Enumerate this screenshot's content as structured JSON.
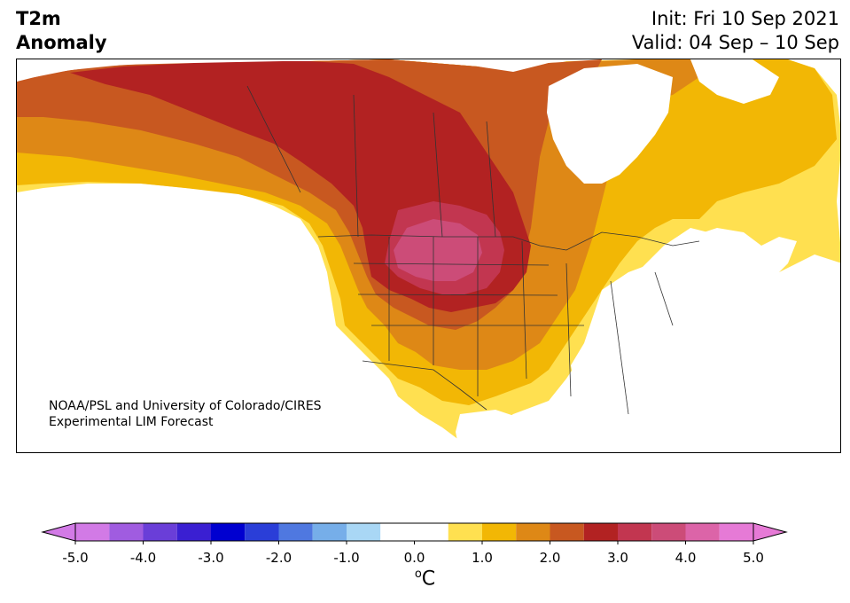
{
  "title": {
    "variable": "T2m",
    "subtitle": "Anomaly",
    "init": "Init: Fri 10 Sep 2021",
    "valid": "Valid: 04 Sep – 10 Sep"
  },
  "credit": {
    "line1": "NOAA/PSL and University of Colorado/CIRES",
    "line2": "Experimental LIM Forecast"
  },
  "colorbar": {
    "bins": [
      {
        "lo": -5.0,
        "hi": -4.5,
        "color": "#d27ae6"
      },
      {
        "lo": -4.5,
        "hi": -4.0,
        "color": "#a05ce0"
      },
      {
        "lo": -4.0,
        "hi": -3.5,
        "color": "#6a3ed8"
      },
      {
        "lo": -3.5,
        "hi": -3.0,
        "color": "#3a1fd2"
      },
      {
        "lo": -3.0,
        "hi": -2.5,
        "color": "#0000d0"
      },
      {
        "lo": -2.5,
        "hi": -2.0,
        "color": "#2a3ed8"
      },
      {
        "lo": -2.0,
        "hi": -1.5,
        "color": "#4f78e0"
      },
      {
        "lo": -1.5,
        "hi": -1.0,
        "color": "#76aee9"
      },
      {
        "lo": -1.0,
        "hi": -0.5,
        "color": "#a9d7f5"
      },
      {
        "lo": -0.5,
        "hi": 0.5,
        "color": "#ffffff"
      },
      {
        "lo": 0.5,
        "hi": 1.0,
        "color": "#ffe050"
      },
      {
        "lo": 1.0,
        "hi": 1.5,
        "color": "#f2b705"
      },
      {
        "lo": 1.5,
        "hi": 2.0,
        "color": "#de8816"
      },
      {
        "lo": 2.0,
        "hi": 2.5,
        "color": "#c85820"
      },
      {
        "lo": 2.5,
        "hi": 3.0,
        "color": "#b22222"
      },
      {
        "lo": 3.0,
        "hi": 3.5,
        "color": "#c23650"
      },
      {
        "lo": 3.5,
        "hi": 4.0,
        "color": "#cc4c78"
      },
      {
        "lo": 4.0,
        "hi": 4.5,
        "color": "#dc64a8"
      },
      {
        "lo": 4.5,
        "hi": 5.0,
        "color": "#e67ad6"
      }
    ],
    "min_extend_color": "#d27ae6",
    "max_extend_color": "#e67ad6",
    "ticks": [
      "-5.0",
      "-4.0",
      "-3.0",
      "-2.0",
      "-1.0",
      "0.0",
      "1.0",
      "2.0",
      "3.0",
      "4.0",
      "5.0"
    ],
    "tick_values": [
      -5,
      -4,
      -3,
      -2,
      -1,
      0,
      1,
      2,
      3,
      4,
      5
    ],
    "units_symbol": "o",
    "units_letter": "C"
  },
  "map": {
    "region": "North America",
    "colors": {
      "ocean": "#ffffff",
      "anom_0_5": "#ffe050",
      "anom_1_0": "#f2b705",
      "anom_1_5": "#de8816",
      "anom_2_0": "#c85820",
      "anom_2_5": "#b22222",
      "anom_3_0": "#c23650",
      "anom_3_5": "#cc4c78",
      "neutral_land": "#ffffff",
      "border": "#333333"
    }
  }
}
